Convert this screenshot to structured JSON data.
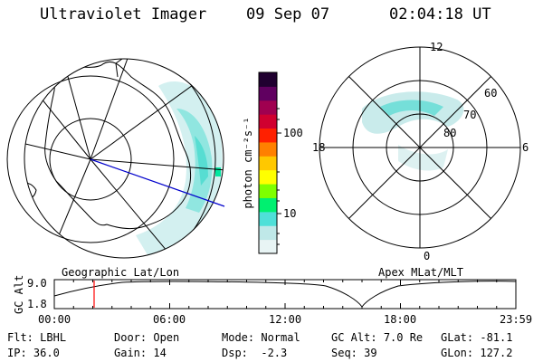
{
  "header": {
    "instrument": "Ultraviolet Imager",
    "date": "09 Sep 07",
    "time": "02:04:18 UT"
  },
  "colorbar": {
    "unit_label": "photon cm⁻²s⁻¹",
    "ticks": [
      "100",
      "10"
    ],
    "palette": [
      "#e8f4f4",
      "#bfe8e8",
      "#4fe0d8",
      "#00f070",
      "#7fff00",
      "#ffff00",
      "#ffc800",
      "#ff8000",
      "#ff2000",
      "#d00030",
      "#a00050",
      "#600060",
      "#200030"
    ]
  },
  "panels": {
    "geographic_label": "Geographic Lat/Lon",
    "magnetic_label": "Apex MLat/MLT",
    "mlt_labels": {
      "top": "12",
      "left": "18",
      "right": "6",
      "bottom": "0"
    },
    "mlat_labels": [
      "60",
      "70",
      "80"
    ]
  },
  "orbit_plot": {
    "ylabel": "GC Alt",
    "yticks": [
      "9.0",
      "1.8"
    ],
    "xticks": [
      "00:00",
      "06:00",
      "12:00",
      "18:00",
      "23:59"
    ],
    "current_time_hours": 2.07
  },
  "status": {
    "row1": [
      {
        "label": "Flt:",
        "value": "LBHL"
      },
      {
        "label": "Door:",
        "value": "Open"
      },
      {
        "label": "Mode:",
        "value": "Normal"
      },
      {
        "label": "GC Alt:",
        "value": "7.0 Re"
      },
      {
        "label": "GLat:",
        "value": "-81.1"
      }
    ],
    "row2": [
      {
        "label": "IP:",
        "value": "36.0"
      },
      {
        "label": "Gain:",
        "value": "14"
      },
      {
        "label": "Dsp:",
        "value": "-2.3"
      },
      {
        "label": "Seq:",
        "value": "39"
      },
      {
        "label": "GLon:",
        "value": "127.2"
      }
    ]
  }
}
